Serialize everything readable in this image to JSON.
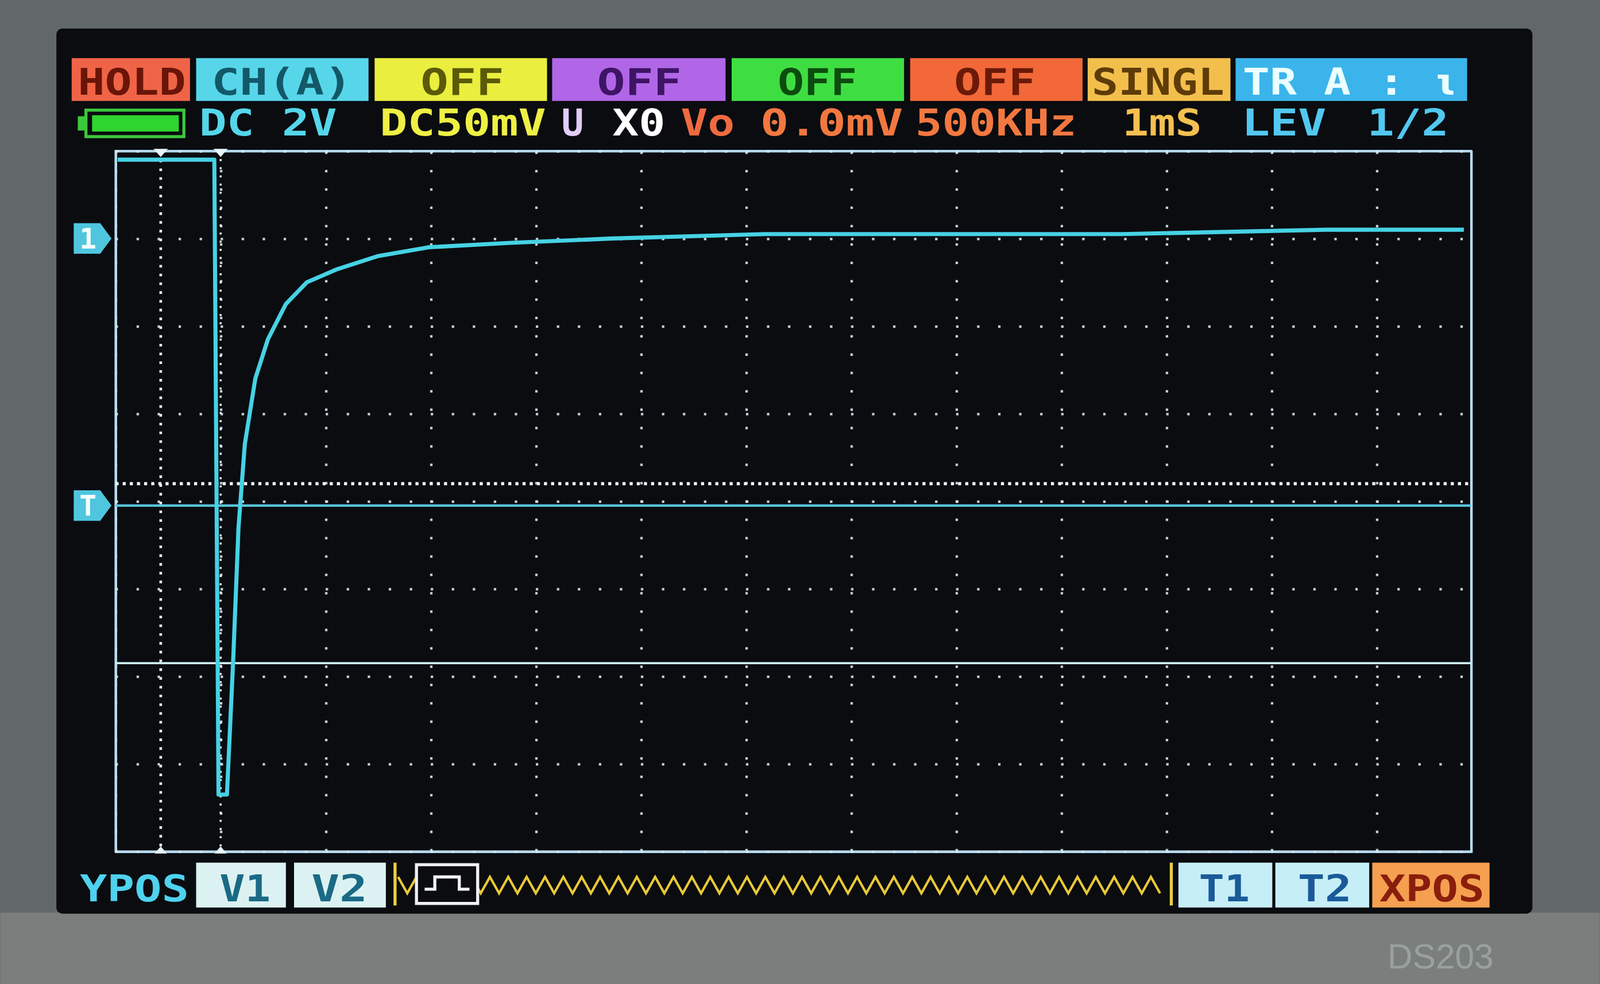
{
  "header": {
    "row1": [
      "HOLD",
      "CH(A)",
      "OFF",
      "OFF",
      "OFF",
      "OFF",
      "SINGL",
      "TR A : ι"
    ],
    "row2": [
      "DC 2V",
      "DC50mV",
      "U",
      "X0",
      "Vo",
      "0.0mV",
      "500KHz",
      "1mS",
      "LEV",
      "1/2"
    ]
  },
  "footer": [
    "YPOS",
    "V1",
    "V2",
    "T1",
    "T2",
    "XPOS"
  ],
  "device_label": "DS203",
  "chart_data": {
    "type": "line",
    "x": [
      0.02,
      0.5,
      0.94,
      0.98,
      1.06,
      1.12,
      1.17,
      1.23,
      1.33,
      1.45,
      1.62,
      1.82,
      2.11,
      2.5,
      2.98,
      3.76,
      4.73,
      6.18,
      7.64,
      9.58,
      11.52,
      12.83
    ],
    "values": [
      1.8,
      1.8,
      1.8,
      -12.7,
      -12.7,
      -9.6,
      -6.6,
      -4.7,
      -3.2,
      -2.3,
      -1.5,
      -1.0,
      -0.7,
      -0.4,
      -0.2,
      -0.1,
      0.0,
      0.1,
      0.1,
      0.1,
      0.2,
      0.2
    ],
    "color": "#46d2e4",
    "xlim": [
      0,
      12.9
    ],
    "xticks": [
      0,
      1,
      2,
      3,
      4,
      5,
      6,
      7,
      8,
      9,
      10,
      11,
      12
    ],
    "ylim": [
      -14,
      2
    ],
    "yticks": [
      -14,
      -12,
      -10,
      -8,
      -6,
      -4,
      -2,
      0,
      2
    ],
    "grid": true,
    "tick_labels": false,
    "markers": {
      "channel": {
        "label": "1",
        "value": 0
      },
      "trigger": {
        "label": "T",
        "value": -6.1
      }
    },
    "cursors": {
      "t1": 0.43,
      "t2": 1.0,
      "v1": -5.6,
      "v2": -9.7
    }
  }
}
